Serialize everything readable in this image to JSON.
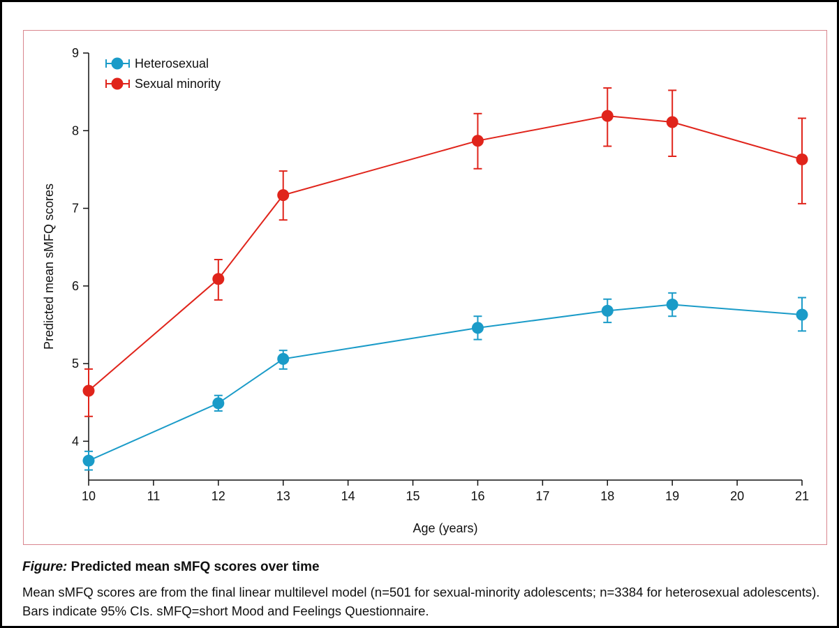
{
  "chart_data": {
    "type": "line",
    "x": [
      10,
      12,
      13,
      16,
      18,
      19,
      21
    ],
    "xticks": [
      10,
      11,
      12,
      13,
      14,
      15,
      16,
      17,
      18,
      19,
      20,
      21
    ],
    "yticks": [
      4,
      5,
      6,
      7,
      8,
      9
    ],
    "ylim": [
      3.5,
      9
    ],
    "xlabel": "Age (years)",
    "ylabel": "Predicted mean sMFQ scores",
    "legend_position": "top-left",
    "series": [
      {
        "name": "Heterosexual",
        "color": "#1a9bc8",
        "values": [
          3.75,
          4.49,
          5.06,
          5.46,
          5.68,
          5.76,
          5.63
        ],
        "ci_low": [
          3.63,
          4.39,
          4.93,
          5.31,
          5.53,
          5.61,
          5.42
        ],
        "ci_high": [
          3.87,
          4.59,
          5.17,
          5.61,
          5.83,
          5.91,
          5.85
        ]
      },
      {
        "name": "Sexual minority",
        "color": "#e0241b",
        "values": [
          4.65,
          6.09,
          7.17,
          7.87,
          8.19,
          8.11,
          7.63
        ],
        "ci_low": [
          4.32,
          5.82,
          6.85,
          7.51,
          7.8,
          7.67,
          7.06
        ],
        "ci_high": [
          4.93,
          6.34,
          7.48,
          8.22,
          8.55,
          8.52,
          8.16
        ]
      }
    ]
  },
  "caption": {
    "label": "Figure:",
    "title": " Predicted mean sMFQ scores over time",
    "body": "Mean sMFQ scores are from the final linear multilevel model (n=501 for sexual-minority adolescents; n=3384 for heterosexual adolescents). Bars indicate 95% CIs. sMFQ=short Mood and Feelings Questionnaire."
  }
}
